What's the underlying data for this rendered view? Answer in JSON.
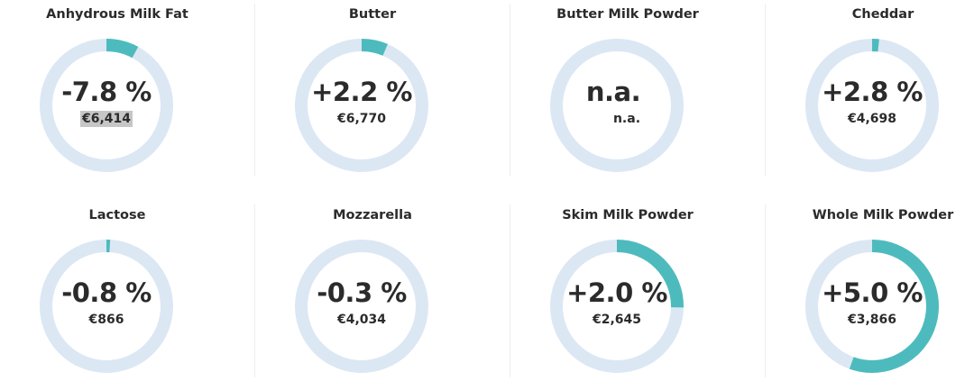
{
  "colors": {
    "track": "#dce7f4",
    "fill": "#4dbbbd",
    "highlight": "#c6c6c6"
  },
  "cards": [
    {
      "name": "Anhydrous Milk Fat",
      "change": "-7.8 %",
      "change_value": -7.8,
      "price": "€6,414",
      "highlighted": true
    },
    {
      "name": "Butter",
      "change": "+2.2 %",
      "change_value": 2.2,
      "price": "€6,770"
    },
    {
      "name": "Butter Milk Powder",
      "change": "n.a.",
      "change_value": null,
      "price": "n.a."
    },
    {
      "name": "Cheddar",
      "change": "+2.8 %",
      "change_value": 2.8,
      "price": "€4,698"
    },
    {
      "name": "Lactose",
      "change": "-0.8 %",
      "change_value": -0.8,
      "price": "€866"
    },
    {
      "name": "Mozzarella",
      "change": "-0.3 %",
      "change_value": -0.3,
      "price": "€4,034"
    },
    {
      "name": "Skim Milk Powder",
      "change": "+2.0 %",
      "change_value": 2.0,
      "price": "€2,645"
    },
    {
      "name": "Whole Milk Powder",
      "change": "+5.0 %",
      "change_value": 5.0,
      "price": "€3,866"
    }
  ],
  "ring_fill_fraction": [
    0.079,
    0.064,
    0,
    0.017,
    0.009,
    0,
    0.253,
    0.555
  ]
}
